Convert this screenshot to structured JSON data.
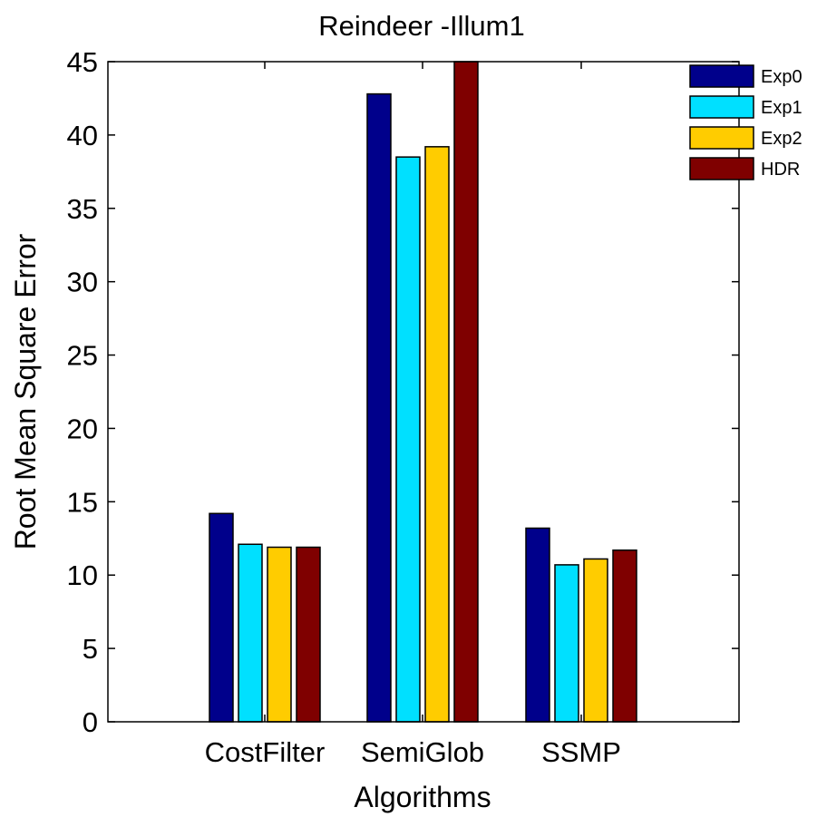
{
  "chart_data": {
    "type": "bar",
    "title": "Reindeer -Illum1",
    "xlabel": "Algorithms",
    "ylabel": "Root Mean Square Error",
    "categories": [
      "CostFilter",
      "SemiGlob",
      "SSMP"
    ],
    "ylim": [
      0,
      45
    ],
    "yticks": [
      0,
      5,
      10,
      15,
      20,
      25,
      30,
      35,
      40,
      45
    ],
    "grid": false,
    "legend_position": "top-right",
    "series": [
      {
        "name": "Exp0",
        "color": "#00008b",
        "values": [
          14.2,
          42.8,
          13.2
        ]
      },
      {
        "name": "Exp1",
        "color": "#00e0ff",
        "values": [
          12.1,
          38.5,
          10.7
        ]
      },
      {
        "name": "Exp2",
        "color": "#ffcc00",
        "values": [
          11.9,
          39.2,
          11.1
        ]
      },
      {
        "name": "HDR",
        "color": "#7f0000",
        "values": [
          11.9,
          45.0,
          11.7
        ]
      }
    ]
  }
}
